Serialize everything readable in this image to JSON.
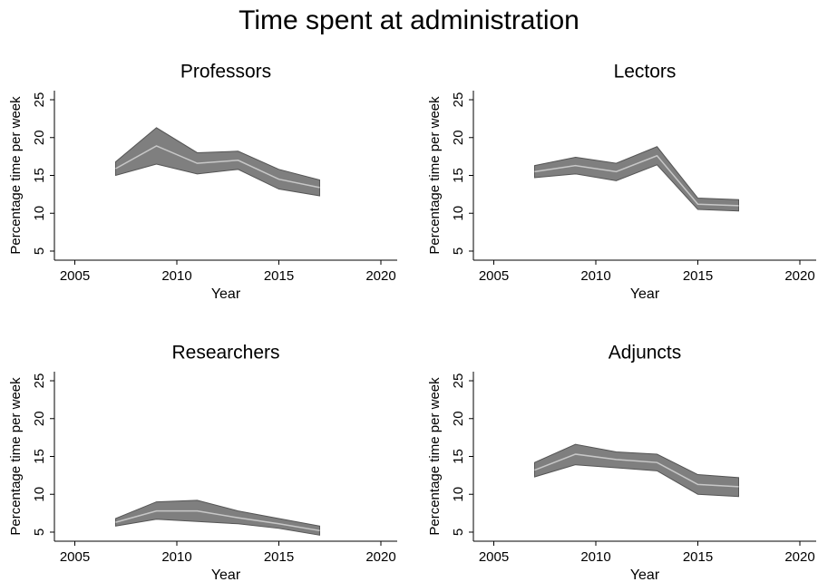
{
  "title": "Time spent at administration",
  "chart_data": [
    {
      "type": "line",
      "title": "Professors",
      "x_label": "Year",
      "y_label": "Percentage time per week",
      "x": [
        2007,
        2009,
        2011,
        2013,
        2015,
        2017
      ],
      "series": [
        {
          "color": "#c8c8c8",
          "band_color": "#7f7f7f",
          "values": [
            15.9,
            18.9,
            16.6,
            17,
            14.5,
            13.4
          ],
          "lower": [
            15,
            16.5,
            15.2,
            15.8,
            13.2,
            12.3
          ],
          "upper": [
            16.8,
            21.3,
            18,
            18.2,
            15.8,
            14.4
          ]
        }
      ],
      "xlim": [
        2004,
        2020.8
      ],
      "xticks": [
        2005,
        2010,
        2015,
        2020
      ],
      "ylim": [
        3.8,
        26.2
      ],
      "yticks": [
        5,
        10,
        15,
        20,
        25
      ]
    },
    {
      "type": "line",
      "title": "Lectors",
      "x_label": "Year",
      "y_label": "Percentage time per week",
      "x": [
        2007,
        2009,
        2011,
        2013,
        2015,
        2017
      ],
      "series": [
        {
          "color": "#c8c8c8",
          "band_color": "#7f7f7f",
          "values": [
            15.5,
            16.3,
            15.5,
            17.6,
            11.2,
            11
          ],
          "lower": [
            14.7,
            15.2,
            14.3,
            16.4,
            10.5,
            10.3
          ],
          "upper": [
            16.3,
            17.4,
            16.6,
            18.8,
            12,
            11.8
          ]
        }
      ],
      "xlim": [
        2004,
        2020.8
      ],
      "xticks": [
        2005,
        2010,
        2015,
        2020
      ],
      "ylim": [
        3.8,
        26.2
      ],
      "yticks": [
        5,
        10,
        15,
        20,
        25
      ]
    },
    {
      "type": "line",
      "title": "Researchers",
      "x_label": "Year",
      "y_label": "Percentage time per week",
      "x": [
        2007,
        2009,
        2011,
        2013,
        2015,
        2017
      ],
      "series": [
        {
          "color": "#c8c8c8",
          "band_color": "#7f7f7f",
          "values": [
            6.3,
            7.8,
            7.8,
            6.9,
            6.1,
            5.2
          ],
          "lower": [
            5.8,
            6.7,
            6.4,
            6.1,
            5.5,
            4.6
          ],
          "upper": [
            6.8,
            9,
            9.2,
            7.8,
            6.8,
            5.8
          ]
        }
      ],
      "xlim": [
        2004,
        2020.8
      ],
      "xticks": [
        2005,
        2010,
        2015,
        2020
      ],
      "ylim": [
        3.8,
        26.2
      ],
      "yticks": [
        5,
        10,
        15,
        20,
        25
      ]
    },
    {
      "type": "line",
      "title": "Adjuncts",
      "x_label": "Year",
      "y_label": "Percentage time per week",
      "x": [
        2007,
        2009,
        2011,
        2013,
        2015,
        2017
      ],
      "series": [
        {
          "color": "#c8c8c8",
          "band_color": "#7f7f7f",
          "values": [
            13.2,
            15.3,
            14.6,
            14.2,
            11.3,
            11
          ],
          "lower": [
            12.3,
            13.9,
            13.5,
            13.1,
            10,
            9.7
          ],
          "upper": [
            14.2,
            16.6,
            15.6,
            15.3,
            12.6,
            12.2
          ]
        }
      ],
      "xlim": [
        2004,
        2020.8
      ],
      "xticks": [
        2005,
        2010,
        2015,
        2020
      ],
      "ylim": [
        3.8,
        26.2
      ],
      "yticks": [
        5,
        10,
        15,
        20,
        25
      ]
    }
  ]
}
